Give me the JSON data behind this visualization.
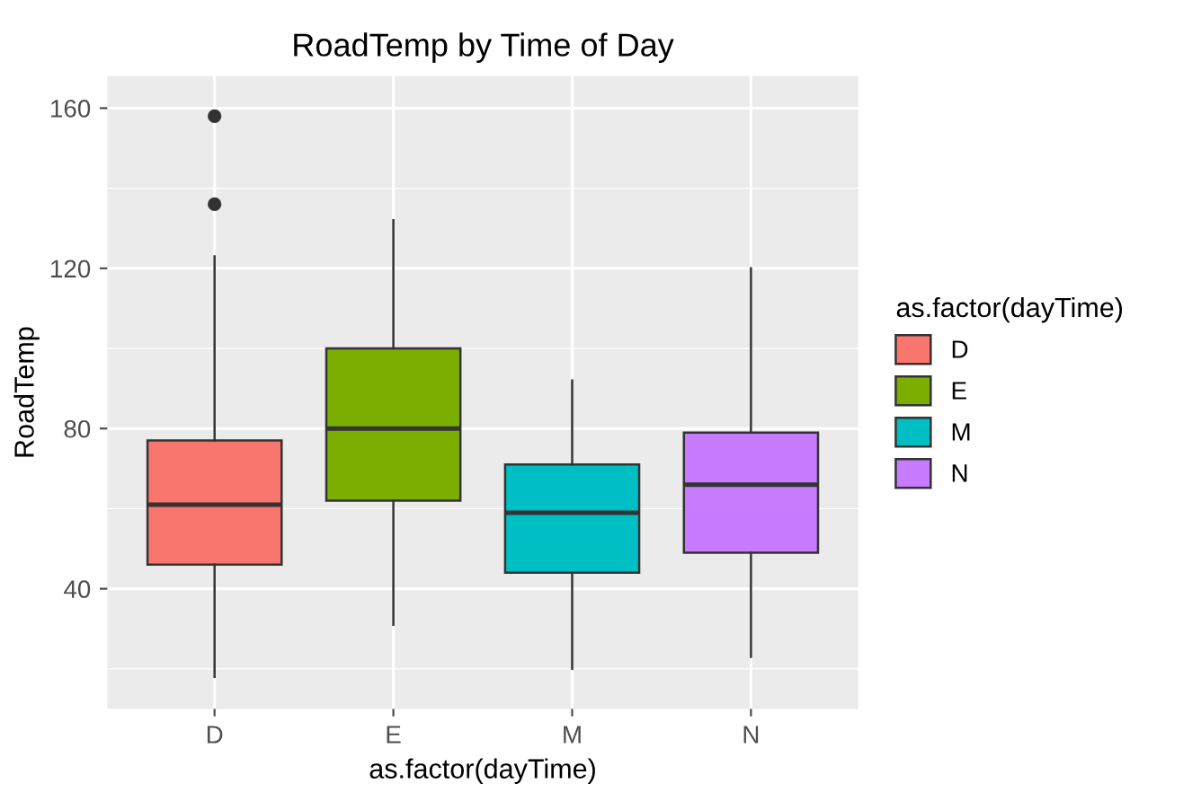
{
  "chart_data": {
    "type": "box",
    "title": "RoadTemp by Time of Day",
    "xlabel": "as.factor(dayTime)",
    "ylabel": "RoadTemp",
    "legend_title": "as.factor(dayTime)",
    "categories": [
      "D",
      "E",
      "M",
      "N"
    ],
    "series": [
      {
        "name": "D",
        "color": "#f8766d",
        "boxes": [
          {
            "low": 18,
            "q1": 46,
            "median": 61,
            "q3": 77,
            "high": 123,
            "outliers": [
              136,
              158
            ]
          },
          null,
          null,
          null
        ]
      },
      {
        "name": "E",
        "color": "#7cae00",
        "boxes": [
          null,
          {
            "low": 31,
            "q1": 62,
            "median": 80,
            "q3": 100,
            "high": 132
          },
          null,
          null
        ]
      },
      {
        "name": "M",
        "color": "#00bfc4",
        "boxes": [
          null,
          null,
          {
            "low": 20,
            "q1": 44,
            "median": 59,
            "q3": 71,
            "high": 92
          },
          null
        ]
      },
      {
        "name": "N",
        "color": "#c77cff",
        "boxes": [
          null,
          null,
          null,
          {
            "low": 23,
            "q1": 49,
            "median": 66,
            "q3": 79,
            "high": 120
          }
        ]
      }
    ],
    "ylim": [
      10,
      168
    ],
    "yticks": [
      40,
      80,
      120,
      160
    ],
    "grid": true,
    "legend": "right"
  }
}
